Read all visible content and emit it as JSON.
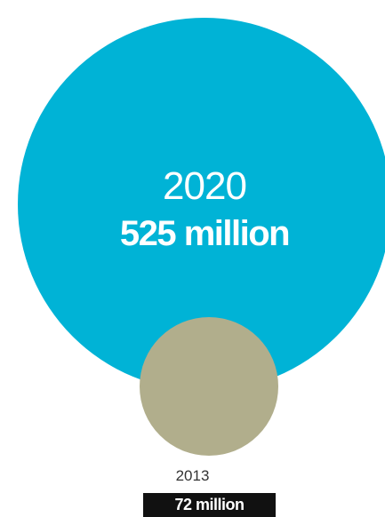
{
  "chart_data": {
    "type": "bubble",
    "categories": [
      "2020",
      "2013"
    ],
    "values": [
      525,
      72
    ],
    "value_labels": [
      "525 million",
      "72 million"
    ],
    "unit": "million",
    "colors": {
      "2020": "#00b3d6",
      "2013": "#b1ae8c"
    }
  }
}
